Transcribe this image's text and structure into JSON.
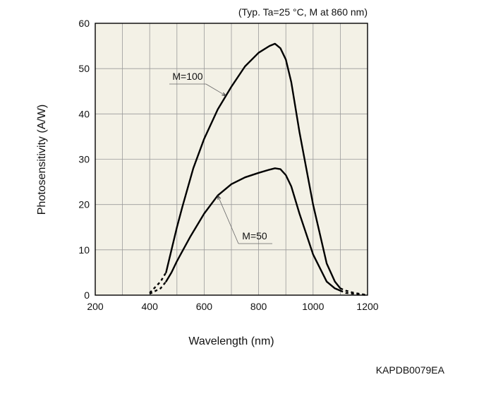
{
  "chart_data": {
    "type": "line",
    "title": "",
    "condition_note": "(Typ. Ta=25 °C, M at 860 nm)",
    "xlabel": "Wavelength (nm)",
    "ylabel": "Photosensitivity (A/W)",
    "xlim": [
      200,
      1200
    ],
    "ylim": [
      0,
      60
    ],
    "xticks": [
      200,
      400,
      600,
      800,
      1000,
      1200
    ],
    "yticks": [
      0,
      10,
      20,
      30,
      40,
      50,
      60
    ],
    "x_tick_labels": [
      "200",
      "400",
      "600",
      "800",
      "1000",
      "1200"
    ],
    "y_tick_labels": [
      "0",
      "10",
      "20",
      "30",
      "40",
      "50",
      "60"
    ],
    "grid": true,
    "plot_background": "#f3f1e6",
    "line_color": "#000000",
    "series": [
      {
        "name": "M=100",
        "x": [
          400,
          440,
          460,
          480,
          500,
          520,
          560,
          600,
          650,
          700,
          750,
          800,
          840,
          860,
          880,
          900,
          920,
          950,
          1000,
          1050,
          1080,
          1100,
          1120,
          1150,
          1200
        ],
        "y": [
          0.5,
          3.0,
          5.0,
          10.0,
          15.0,
          19.5,
          28.0,
          34.5,
          41.0,
          46.0,
          50.5,
          53.5,
          55.0,
          55.5,
          54.5,
          52.0,
          47.0,
          36.0,
          20.0,
          7.0,
          3.0,
          1.5,
          1.0,
          0.5,
          0.0
        ],
        "dashed_segments": [
          [
            400,
            460
          ],
          [
            1100,
            1200
          ]
        ]
      },
      {
        "name": "M=50",
        "x": [
          400,
          440,
          460,
          480,
          500,
          550,
          600,
          650,
          700,
          750,
          800,
          840,
          860,
          880,
          900,
          920,
          950,
          1000,
          1050,
          1080,
          1100,
          1120,
          1150,
          1200
        ],
        "y": [
          0.3,
          1.5,
          3.0,
          5.0,
          7.5,
          13.0,
          18.0,
          22.0,
          24.5,
          26.0,
          27.0,
          27.7,
          28.0,
          27.8,
          26.5,
          24.0,
          18.0,
          9.0,
          3.0,
          1.5,
          1.0,
          0.5,
          0.3,
          0.0
        ],
        "dashed_segments": [
          [
            400,
            460
          ],
          [
            1100,
            1200
          ]
        ]
      }
    ],
    "annotations": [
      {
        "text": "M=100",
        "points_to_series": "M=100",
        "at_x": 680
      },
      {
        "text": "M=50",
        "points_to_series": "M=50",
        "at_x": 650
      }
    ]
  },
  "figure_code": "KAPDB0079EA"
}
